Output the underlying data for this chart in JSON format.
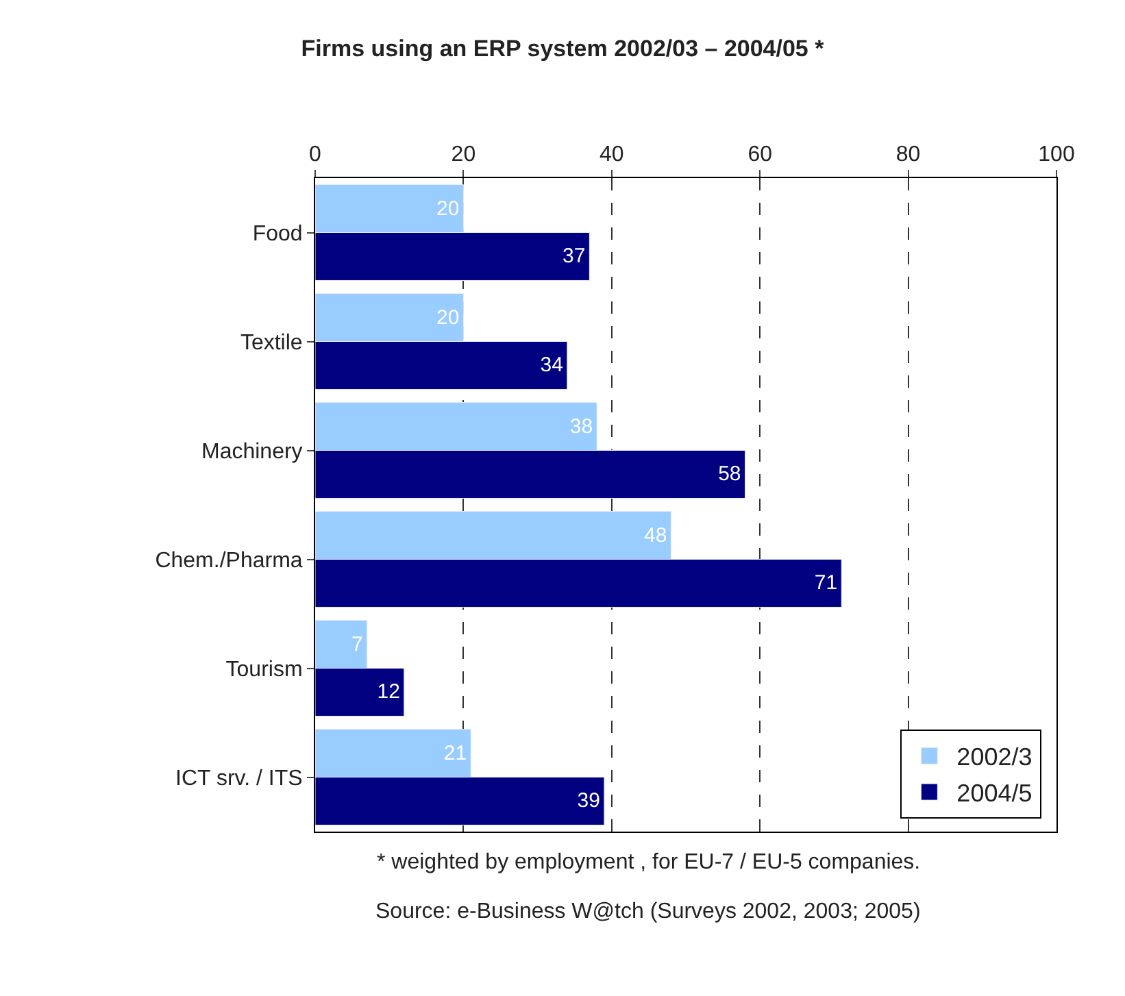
{
  "chart_data": {
    "type": "bar",
    "orientation": "horizontal",
    "title": "Firms using an ERP system 2002/03 – 2004/05 *",
    "categories": [
      "Food",
      "Textile",
      "Machinery",
      "Chem./Pharma",
      "Tourism",
      "ICT srv. / ITS"
    ],
    "series": [
      {
        "name": "2002/3",
        "color": "#99ccff",
        "values": [
          20,
          20,
          38,
          48,
          7,
          21
        ]
      },
      {
        "name": "2004/5",
        "color": "#000080",
        "values": [
          37,
          34,
          58,
          71,
          12,
          39
        ]
      }
    ],
    "xlim": [
      0,
      100
    ],
    "xticks": [
      0,
      20,
      40,
      60,
      80,
      100
    ],
    "grid": "x",
    "legend": "bottom right",
    "data_labels": true,
    "annotations": [
      "* weighted by employment , for EU-7 / EU-5 companies.",
      "Source: e-Business W@tch (Surveys 2002, 2003; 2005)"
    ]
  }
}
